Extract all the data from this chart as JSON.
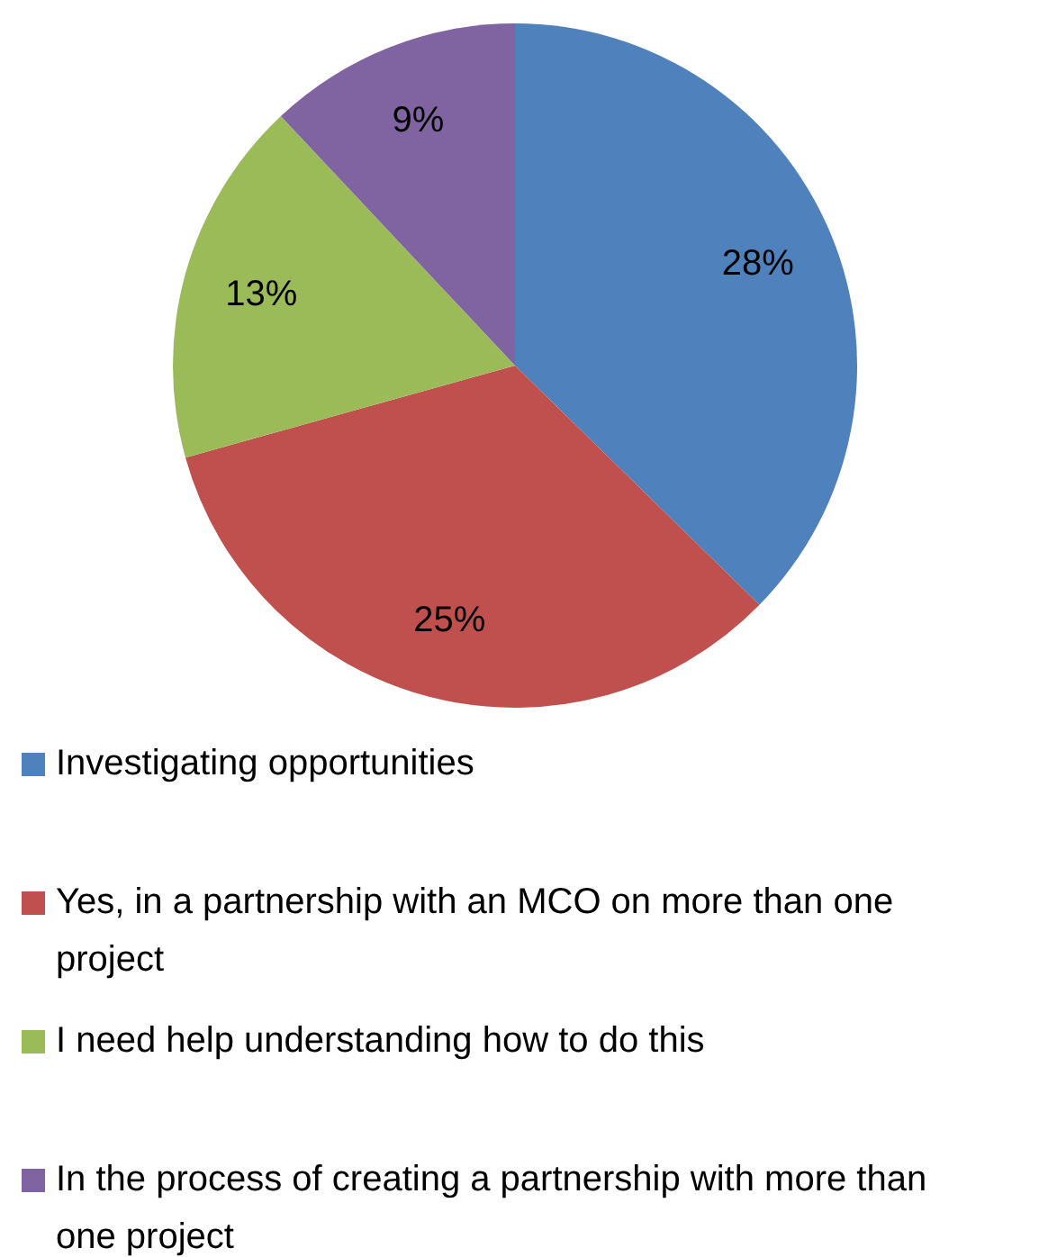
{
  "chart_data": {
    "type": "pie",
    "categories": [
      "Investigating opportunities",
      "Yes, in a partnership with an MCO on more than one project",
      "I need help understanding how to do this",
      "In the process of creating a partnership with more than one project"
    ],
    "values": [
      28,
      25,
      13,
      9
    ],
    "colors": [
      "#4f81bd",
      "#c0504d",
      "#9bbb59",
      "#8064a2"
    ],
    "value_labels": [
      "28%",
      "25%",
      "13%",
      "9%"
    ],
    "legend": "bottom"
  }
}
